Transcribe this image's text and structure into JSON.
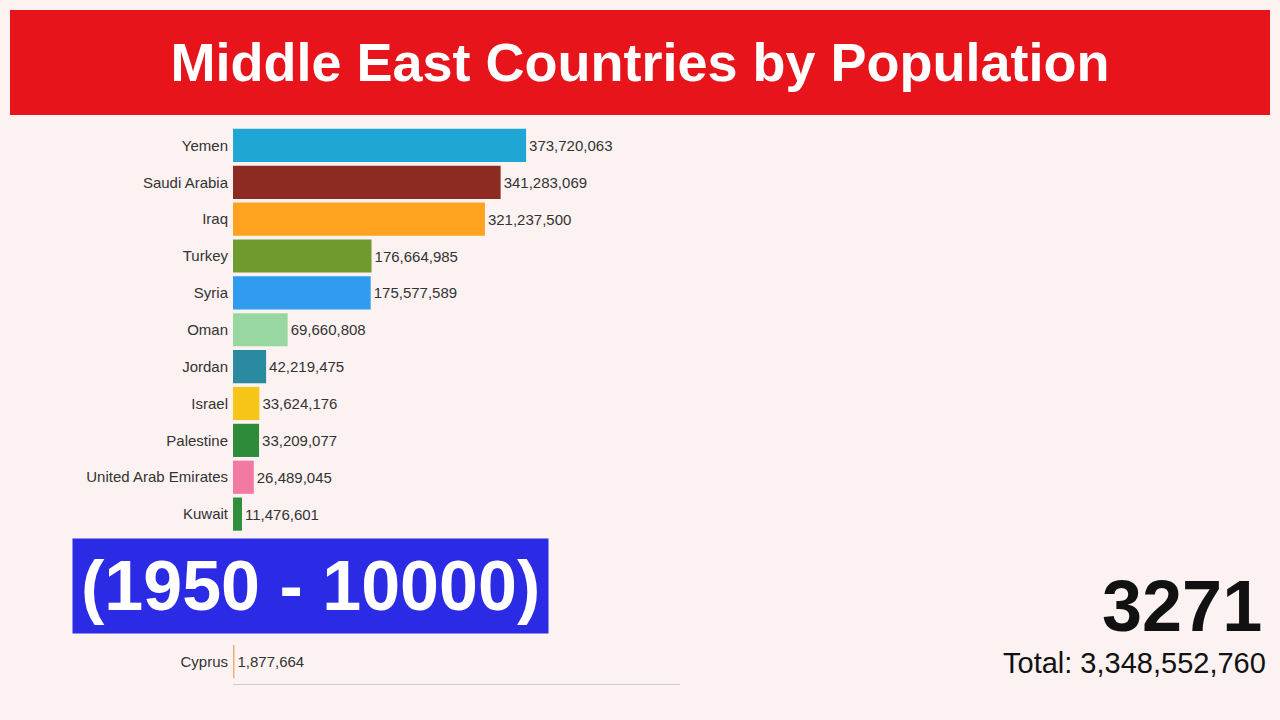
{
  "chart_data": {
    "type": "bar",
    "orientation": "horizontal",
    "title": "Middle East Countries by Population",
    "annotations": [
      "(1950 - 10000)",
      "3271",
      "Total: 3,348,552,760"
    ],
    "categories": [
      "Yemen",
      "Saudi Arabia",
      "Iraq",
      "Turkey",
      "Syria",
      "Oman",
      "Jordan",
      "Israel",
      "Palestine",
      "United Arab Emirates",
      "Kuwait",
      null,
      null,
      null,
      "Cyprus"
    ],
    "values": [
      373720063,
      341283069,
      321237500,
      176664985,
      175577589,
      69660808,
      42219475,
      33624176,
      33209077,
      26489045,
      11476601,
      null,
      null,
      null,
      1877664
    ],
    "value_labels": [
      "373,720,063",
      "341,283,069",
      "321,237,500",
      "176,664,985",
      "175,577,589",
      "69,660,808",
      "42,219,475",
      "33,624,176",
      "33,209,077",
      "26,489,045",
      "11,476,601",
      null,
      null,
      null,
      "1,877,664"
    ],
    "colors": [
      "#1fa6d4",
      "#8b2b22",
      "#ffa21f",
      "#6e9a2e",
      "#2f9cf0",
      "#98d8a0",
      "#2a8aa0",
      "#f5c518",
      "#2e8b3a",
      "#f27aa2",
      "#2f8f3a",
      null,
      null,
      null,
      "#e8b070"
    ],
    "xlim": [
      0,
      570000000
    ],
    "tick_labels": "y",
    "grid": false,
    "data_labels": true
  }
}
